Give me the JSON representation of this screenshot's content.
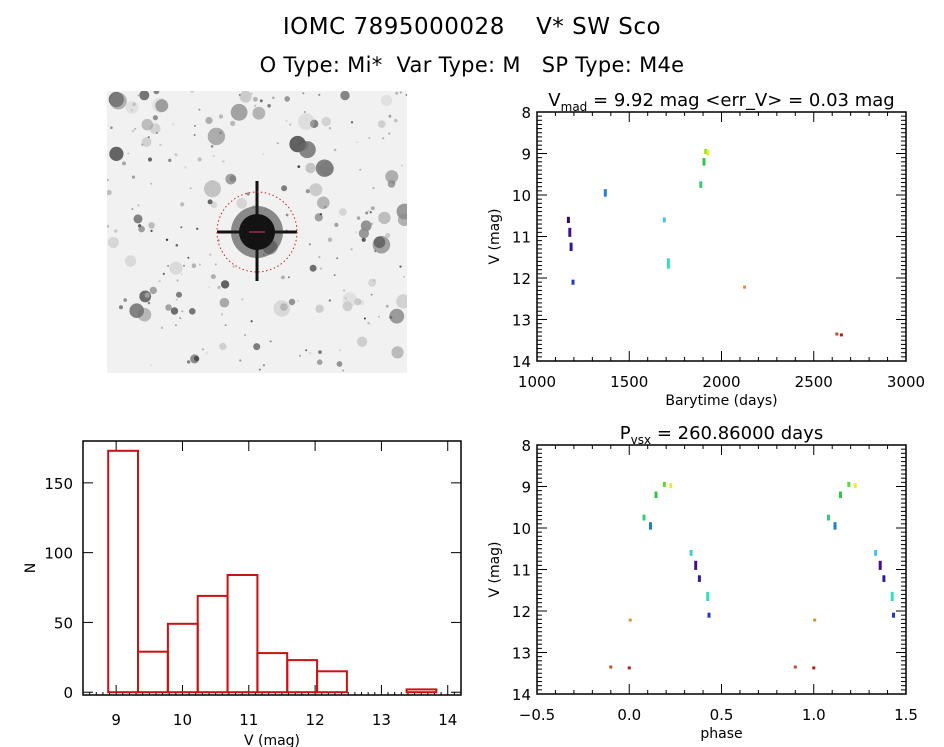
{
  "header": {
    "line1": "IOMC 7895000028    V* SW Sco",
    "line2": "O Type: Mi*  Var Type: M   SP Type: M4e"
  },
  "image_panel": {
    "description": "Grayscale star-field finding chart centered on target with red dotted circle"
  },
  "chart_data": [
    {
      "id": "light-curve",
      "type": "scatter",
      "title": "V_mad = 9.92 mag <err_V> = 0.03 mag",
      "title_parts": {
        "main": "V",
        "sub": "mad",
        "rest": " = 9.92 mag <err_V> = 0.03 mag"
      },
      "xlabel": "Barytime (days)",
      "ylabel": "V (mag)",
      "xlim": [
        1000,
        3000
      ],
      "ylim": [
        14,
        8
      ],
      "y_inverted": true,
      "xticks": [
        1000,
        1500,
        2000,
        2500,
        3000
      ],
      "yticks": [
        8,
        9,
        10,
        11,
        12,
        13,
        14
      ],
      "points": [
        {
          "x": 1170,
          "y": 10.6,
          "h": 0.15,
          "color": "#3a0a5c"
        },
        {
          "x": 1178,
          "y": 10.9,
          "h": 0.22,
          "color": "#4b0e8a"
        },
        {
          "x": 1185,
          "y": 11.25,
          "h": 0.2,
          "color": "#2a1aa8"
        },
        {
          "x": 1195,
          "y": 12.1,
          "h": 0.12,
          "color": "#1c3cc4"
        },
        {
          "x": 1370,
          "y": 9.95,
          "h": 0.18,
          "color": "#1f7fd8"
        },
        {
          "x": 1690,
          "y": 10.6,
          "h": 0.12,
          "color": "#40c8e8"
        },
        {
          "x": 1712,
          "y": 11.65,
          "h": 0.25,
          "color": "#30e0c0"
        },
        {
          "x": 1888,
          "y": 9.75,
          "h": 0.16,
          "color": "#30d070"
        },
        {
          "x": 1905,
          "y": 9.2,
          "h": 0.18,
          "color": "#30c840"
        },
        {
          "x": 1915,
          "y": 8.95,
          "h": 0.12,
          "color": "#88e020"
        },
        {
          "x": 1925,
          "y": 8.98,
          "h": 0.14,
          "color": "#e8f020"
        },
        {
          "x": 2125,
          "y": 12.22,
          "h": 0.05,
          "color": "#e09030"
        },
        {
          "x": 2625,
          "y": 13.35,
          "h": 0.04,
          "color": "#c05020"
        },
        {
          "x": 2650,
          "y": 13.37,
          "h": 0.04,
          "color": "#b02010"
        }
      ]
    },
    {
      "id": "histogram",
      "type": "bar",
      "title": "",
      "xlabel": "V (mag)",
      "ylabel": "N",
      "xlim": [
        8.5,
        14.2
      ],
      "ylim": [
        -2,
        180
      ],
      "xticks": [
        9,
        10,
        11,
        12,
        13,
        14
      ],
      "yticks": [
        0,
        50,
        100,
        150
      ],
      "bin_edges": [
        8.88,
        9.33,
        9.78,
        10.23,
        10.68,
        11.13,
        11.58,
        12.03,
        12.48,
        12.93,
        13.38,
        13.83
      ],
      "counts": [
        173,
        29,
        49,
        69,
        84,
        28,
        23,
        15,
        0,
        0,
        2
      ],
      "bar_color": "#cc1111"
    },
    {
      "id": "phased-curve",
      "type": "scatter",
      "title": "P_vsx = 260.86000 days",
      "title_parts": {
        "main": "P",
        "sub": "vsx",
        "rest": " = 260.86000 days"
      },
      "xlabel": "phase",
      "ylabel": "V (mag)",
      "xlim": [
        -0.5,
        1.5
      ],
      "ylim": [
        14,
        8
      ],
      "y_inverted": true,
      "xticks": [
        -0.5,
        0.0,
        0.5,
        1.0,
        1.5
      ],
      "xtick_labels": [
        "−0.5",
        "0.0",
        "0.5",
        "1.0",
        "1.5"
      ],
      "yticks": [
        8,
        9,
        10,
        11,
        12,
        13,
        14
      ],
      "points": [
        {
          "x": 0.08,
          "y": 9.75,
          "h": 0.14,
          "color": "#30d070"
        },
        {
          "x": 0.115,
          "y": 9.95,
          "h": 0.18,
          "color": "#1f7fd8"
        },
        {
          "x": 0.145,
          "y": 9.2,
          "h": 0.16,
          "color": "#30c840"
        },
        {
          "x": 0.19,
          "y": 8.95,
          "h": 0.12,
          "color": "#60d830"
        },
        {
          "x": 0.225,
          "y": 8.98,
          "h": 0.12,
          "color": "#e8f020"
        },
        {
          "x": 0.335,
          "y": 10.6,
          "h": 0.14,
          "color": "#40c8e8"
        },
        {
          "x": 0.36,
          "y": 10.9,
          "h": 0.22,
          "color": "#4b0e8a"
        },
        {
          "x": 0.38,
          "y": 11.22,
          "h": 0.16,
          "color": "#2a1aa8"
        },
        {
          "x": 0.425,
          "y": 11.65,
          "h": 0.22,
          "color": "#30e0c0"
        },
        {
          "x": 0.432,
          "y": 12.1,
          "h": 0.12,
          "color": "#1c3cc4"
        },
        {
          "x": 0.005,
          "y": 12.22,
          "h": 0.05,
          "color": "#e09030"
        },
        {
          "x": -0.1,
          "y": 13.35,
          "h": 0.04,
          "color": "#c05020"
        },
        {
          "x": 0.0,
          "y": 13.37,
          "h": 0.04,
          "color": "#b02010"
        }
      ],
      "repeat_offset": 1.0
    }
  ]
}
